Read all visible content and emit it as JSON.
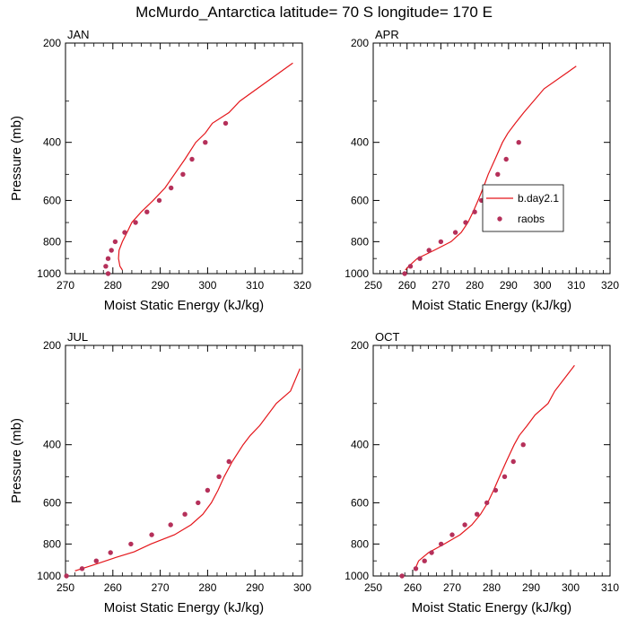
{
  "title": "McMurdo_Antarctica  latitude= 70 S longitude= 170 E",
  "colors": {
    "model": "#e4161b",
    "obs": "#b5305a",
    "axis": "#000000"
  },
  "legend": {
    "model_label": "b.day2.1",
    "obs_label": "raobs",
    "placement": "inside-upper-panel-APR"
  },
  "chart_data": [
    {
      "type": "line",
      "panel_label": "JAN",
      "xlabel": "Moist Static Energy (kJ/kg)",
      "ylabel": "Pressure (mb)",
      "xlim": [
        270,
        320
      ],
      "ylim": [
        1000,
        200
      ],
      "yscale": "log",
      "xticks": [
        "270",
        "280",
        "290",
        "300",
        "310",
        "320"
      ],
      "yticks": [
        "200",
        "400",
        "600",
        "800",
        "1000"
      ],
      "series": [
        {
          "name": "b.day2.1",
          "kind": "line",
          "points": [
            [
              282.0,
              975
            ],
            [
              281.5,
              950
            ],
            [
              281.2,
              900
            ],
            [
              281.3,
              850
            ],
            [
              282.0,
              800
            ],
            [
              283.0,
              750
            ],
            [
              284.0,
              700
            ],
            [
              286.0,
              650
            ],
            [
              288.5,
              600
            ],
            [
              291.0,
              550
            ],
            [
              293.0,
              500
            ],
            [
              295.2,
              450
            ],
            [
              297.5,
              400
            ],
            [
              299.5,
              375
            ],
            [
              301.0,
              350
            ],
            [
              304.5,
              325
            ],
            [
              306.8,
              300
            ],
            [
              318.0,
              230
            ]
          ]
        },
        {
          "name": "raobs",
          "kind": "scatter",
          "points": [
            [
              279.0,
              1000
            ],
            [
              278.5,
              950
            ],
            [
              279.0,
              900
            ],
            [
              279.7,
              850
            ],
            [
              280.5,
              800
            ],
            [
              282.5,
              750
            ],
            [
              284.8,
              700
            ],
            [
              287.2,
              650
            ],
            [
              289.8,
              600
            ],
            [
              292.3,
              550
            ],
            [
              294.8,
              500
            ],
            [
              296.7,
              450
            ],
            [
              299.5,
              400
            ],
            [
              303.8,
              350
            ]
          ]
        }
      ]
    },
    {
      "type": "line",
      "panel_label": "APR",
      "xlabel": "Moist Static Energy (kJ/kg)",
      "ylabel": "",
      "xlim": [
        250,
        320
      ],
      "ylim": [
        1000,
        200
      ],
      "yscale": "log",
      "xticks": [
        "250",
        "260",
        "270",
        "280",
        "290",
        "300",
        "310",
        "320"
      ],
      "yticks": [
        "200",
        "400",
        "600",
        "800",
        "1000"
      ],
      "series": [
        {
          "name": "b.day2.1",
          "kind": "line",
          "points": [
            [
              259.5,
              975
            ],
            [
              260.5,
              950
            ],
            [
              263.0,
              900
            ],
            [
              268.0,
              850
            ],
            [
              273.0,
              800
            ],
            [
              276.0,
              750
            ],
            [
              278.0,
              700
            ],
            [
              279.5,
              650
            ],
            [
              281.0,
              600
            ],
            [
              282.5,
              550
            ],
            [
              284.0,
              500
            ],
            [
              286.0,
              450
            ],
            [
              288.2,
              400
            ],
            [
              289.8,
              375
            ],
            [
              292.0,
              350
            ],
            [
              294.5,
              325
            ],
            [
              300.5,
              275
            ],
            [
              310.0,
              235
            ]
          ]
        },
        {
          "name": "raobs",
          "kind": "scatter",
          "points": [
            [
              259.3,
              1000
            ],
            [
              261.0,
              950
            ],
            [
              263.8,
              900
            ],
            [
              266.5,
              850
            ],
            [
              270.0,
              800
            ],
            [
              274.3,
              750
            ],
            [
              277.3,
              700
            ],
            [
              280.0,
              650
            ],
            [
              282.0,
              600
            ],
            [
              284.3,
              550
            ],
            [
              286.8,
              500
            ],
            [
              289.3,
              450
            ],
            [
              293.0,
              400
            ]
          ]
        }
      ]
    },
    {
      "type": "line",
      "panel_label": "JUL",
      "xlabel": "Moist Static Energy (kJ/kg)",
      "ylabel": "Pressure (mb)",
      "xlim": [
        250,
        300
      ],
      "ylim": [
        1000,
        200
      ],
      "yscale": "log",
      "xticks": [
        "250",
        "260",
        "270",
        "280",
        "290",
        "300"
      ],
      "yticks": [
        "200",
        "400",
        "600",
        "800",
        "1000"
      ],
      "series": [
        {
          "name": "b.day2.1",
          "kind": "line",
          "points": [
            [
              252.0,
              965
            ],
            [
              256.0,
              925
            ],
            [
              260.5,
              880
            ],
            [
              264.5,
              845
            ],
            [
              268.0,
              800
            ],
            [
              273.0,
              750
            ],
            [
              276.5,
              700
            ],
            [
              279.0,
              650
            ],
            [
              280.8,
              600
            ],
            [
              282.2,
              550
            ],
            [
              283.5,
              500
            ],
            [
              285.2,
              450
            ],
            [
              287.5,
              400
            ],
            [
              289.0,
              375
            ],
            [
              291.0,
              350
            ],
            [
              294.5,
              300
            ],
            [
              297.5,
              275
            ],
            [
              299.5,
              235
            ]
          ]
        },
        {
          "name": "raobs",
          "kind": "scatter",
          "points": [
            [
              250.2,
              1000
            ],
            [
              253.5,
              950
            ],
            [
              256.5,
              900
            ],
            [
              259.5,
              850
            ],
            [
              263.8,
              800
            ],
            [
              268.2,
              750
            ],
            [
              272.2,
              700
            ],
            [
              275.2,
              650
            ],
            [
              278.0,
              600
            ],
            [
              280.0,
              550
            ],
            [
              282.4,
              500
            ],
            [
              284.5,
              450
            ]
          ]
        }
      ]
    },
    {
      "type": "line",
      "panel_label": "OCT",
      "xlabel": "Moist Static Energy (kJ/kg)",
      "ylabel": "",
      "xlim": [
        250,
        310
      ],
      "ylim": [
        1000,
        200
      ],
      "yscale": "log",
      "xticks": [
        "250",
        "260",
        "270",
        "280",
        "290",
        "300",
        "310"
      ],
      "yticks": [
        "200",
        "400",
        "600",
        "800",
        "1000"
      ],
      "series": [
        {
          "name": "b.day2.1",
          "kind": "line",
          "points": [
            [
              260.5,
              960
            ],
            [
              261.5,
              900
            ],
            [
              264.0,
              850
            ],
            [
              268.0,
              800
            ],
            [
              272.0,
              750
            ],
            [
              275.0,
              700
            ],
            [
              277.2,
              650
            ],
            [
              279.0,
              600
            ],
            [
              280.5,
              550
            ],
            [
              282.0,
              500
            ],
            [
              283.7,
              450
            ],
            [
              285.7,
              400
            ],
            [
              287.0,
              375
            ],
            [
              289.0,
              350
            ],
            [
              291.0,
              325
            ],
            [
              294.3,
              300
            ],
            [
              296.0,
              275
            ],
            [
              301.0,
              230
            ]
          ]
        },
        {
          "name": "raobs",
          "kind": "scatter",
          "points": [
            [
              257.3,
              1000
            ],
            [
              260.8,
              950
            ],
            [
              263.0,
              900
            ],
            [
              264.8,
              850
            ],
            [
              267.2,
              800
            ],
            [
              270.0,
              750
            ],
            [
              273.2,
              700
            ],
            [
              276.3,
              650
            ],
            [
              278.8,
              600
            ],
            [
              281.0,
              550
            ],
            [
              283.3,
              500
            ],
            [
              285.5,
              450
            ],
            [
              288.0,
              400
            ]
          ]
        }
      ]
    }
  ]
}
